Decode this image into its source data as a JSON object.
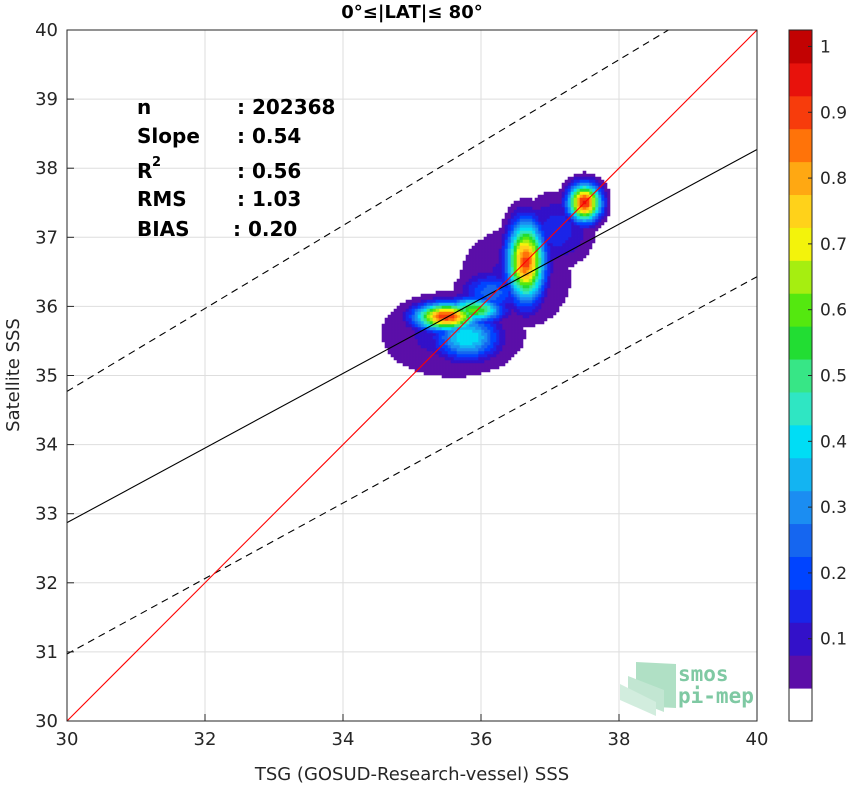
{
  "chart_data": {
    "type": "heatmap",
    "title": "0°≤|LAT|≤ 80°",
    "xlabel": "TSG (GOSUD-Research-vessel) SSS",
    "ylabel": "Satellite SSS",
    "xlim": [
      30,
      40
    ],
    "ylim": [
      30,
      40
    ],
    "xticks": [
      "30",
      "32",
      "34",
      "36",
      "38",
      "40"
    ],
    "yticks": [
      "30",
      "31",
      "32",
      "33",
      "34",
      "35",
      "36",
      "37",
      "38",
      "39",
      "40"
    ],
    "grid": true,
    "stats": {
      "n_label": "n",
      "n_value": ": 202368",
      "slope_label": "Slope",
      "slope_value": ": 0.54",
      "r2_label": "R",
      "r2_sup": "2",
      "r2_value": ": 0.56",
      "rms_label": "RMS",
      "rms_value": ": 1.03",
      "bias_label": "BIAS",
      "bias_value": ": 0.20"
    },
    "lines": {
      "identity": {
        "x": [
          30,
          40
        ],
        "y": [
          30,
          40
        ],
        "color": "#ff0000"
      },
      "regression": {
        "x": [
          30,
          40
        ],
        "y": [
          32.87,
          38.27
        ],
        "color": "#000000"
      },
      "upper_bound": {
        "x": [
          30,
          40
        ],
        "y": [
          34.77,
          40.77
        ],
        "color": "#000000",
        "style": "dashed"
      },
      "lower_bound": {
        "x": [
          30,
          40
        ],
        "y": [
          30.97,
          36.43
        ],
        "color": "#000000",
        "style": "dashed"
      }
    },
    "density": {
      "blobs": [
        {
          "x": 35.5,
          "y": 35.85,
          "rx": 0.3,
          "ry": 0.13,
          "peak": 0.95
        },
        {
          "x": 35.9,
          "y": 35.95,
          "rx": 0.28,
          "ry": 0.12,
          "peak": 0.62
        },
        {
          "x": 35.8,
          "y": 35.55,
          "rx": 0.32,
          "ry": 0.22,
          "peak": 0.45
        },
        {
          "x": 36.65,
          "y": 36.65,
          "rx": 0.18,
          "ry": 0.38,
          "peak": 0.92
        },
        {
          "x": 37.5,
          "y": 37.5,
          "rx": 0.16,
          "ry": 0.18,
          "peak": 0.97
        },
        {
          "x": 36.15,
          "y": 36.2,
          "rx": 0.3,
          "ry": 0.2,
          "peak": 0.28
        },
        {
          "x": 37.1,
          "y": 37.1,
          "rx": 0.35,
          "ry": 0.35,
          "peak": 0.18
        },
        {
          "x": 35.6,
          "y": 35.6,
          "rx": 0.75,
          "ry": 0.45,
          "peak": 0.13
        },
        {
          "x": 36.5,
          "y": 36.4,
          "rx": 0.6,
          "ry": 0.55,
          "peak": 0.12
        }
      ]
    },
    "colorbar": {
      "ticks": [
        "0.1",
        "0.2",
        "0.3",
        "0.4",
        "0.5",
        "0.6",
        "0.7",
        "0.8",
        "0.9",
        "1"
      ],
      "levels": [
        0.05,
        0.1,
        0.15,
        0.2,
        0.25,
        0.3,
        0.35,
        0.4,
        0.45,
        0.5,
        0.55,
        0.6,
        0.65,
        0.7,
        0.75,
        0.8,
        0.85,
        0.9,
        0.95,
        1.0
      ],
      "colors": [
        "#ffffff",
        "#5b0ea8",
        "#3311c9",
        "#1a25e8",
        "#0044ff",
        "#1566f0",
        "#1b8df2",
        "#13b4f2",
        "#00ddf5",
        "#2fe6c3",
        "#37e686",
        "#22dd33",
        "#54e80f",
        "#a6ee10",
        "#f3f30b",
        "#ffd21a",
        "#ffa812",
        "#ff7309",
        "#f73c0c",
        "#e8120c",
        "#c20202",
        "#880000"
      ]
    }
  },
  "logo": {
    "line1": "smos",
    "line2": "pi-mep"
  }
}
